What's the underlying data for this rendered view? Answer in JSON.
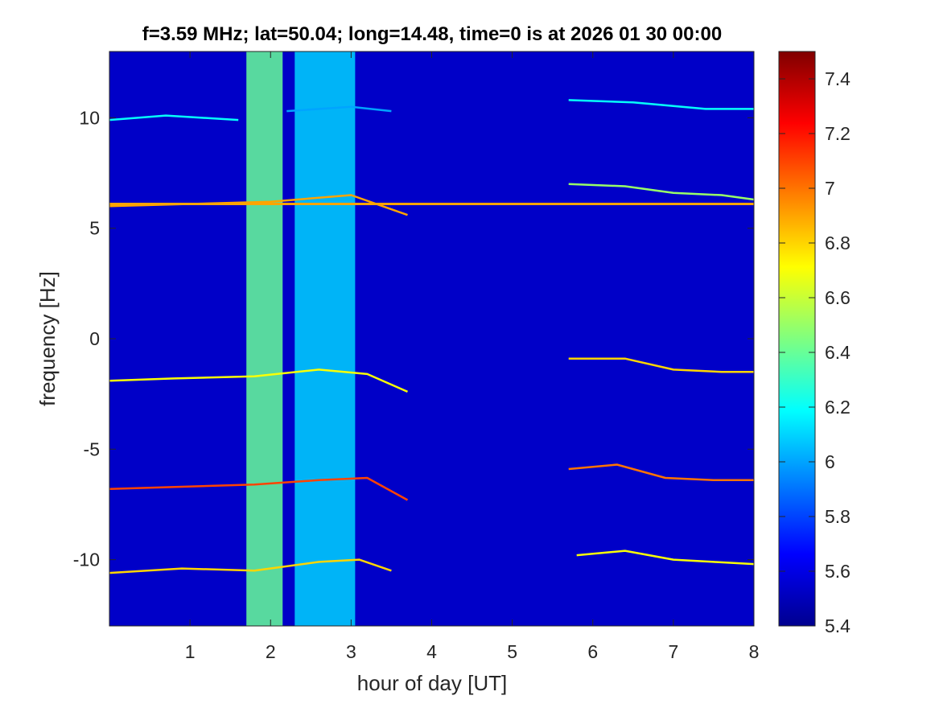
{
  "chart_data": {
    "type": "heatmap",
    "title": "f=3.59 MHz;  lat=50.04; long=14.48, time=0 is at 2026 01 30 00:00",
    "xlabel": "hour of day [UT]",
    "ylabel": "frequency [Hz]",
    "xlim": [
      0,
      8
    ],
    "ylim": [
      -13,
      13
    ],
    "x_ticks": [
      1,
      2,
      3,
      4,
      5,
      6,
      7,
      8
    ],
    "x_tick_labels": [
      "1",
      "2",
      "3",
      "4",
      "5",
      "6",
      "7",
      "8"
    ],
    "y_ticks": [
      10,
      5,
      0,
      -5,
      -10
    ],
    "y_tick_labels": [
      "10",
      "5",
      "0",
      "-5",
      "-10"
    ],
    "colorbar": {
      "colormap": "jet",
      "range": [
        5.4,
        7.5
      ],
      "ticks": [
        7.4,
        7.2,
        7.0,
        6.8,
        6.6,
        6.4,
        6.2,
        6.0,
        5.8,
        5.6,
        5.4
      ],
      "tick_labels": [
        "7.4",
        "7.2",
        "7",
        "6.8",
        "6.6",
        "6.4",
        "6.2",
        "6",
        "5.8",
        "5.6",
        "5.4"
      ]
    },
    "background_level": 5.55,
    "broadband_bands": [
      {
        "x_start": 1.7,
        "x_end": 2.15,
        "level": 6.4
      },
      {
        "x_start": 2.3,
        "x_end": 3.05,
        "level": 6.1
      }
    ],
    "tones": [
      {
        "x_start": 0.0,
        "x_end": 8.0,
        "freq": 6.1,
        "level": 6.9
      }
    ],
    "traces": [
      {
        "points": [
          [
            0.0,
            9.9
          ],
          [
            0.7,
            10.1
          ],
          [
            1.6,
            9.9
          ]
        ],
        "level": 6.2
      },
      {
        "points": [
          [
            2.2,
            10.3
          ],
          [
            3.0,
            10.5
          ],
          [
            3.5,
            10.3
          ]
        ],
        "level": 6.0
      },
      {
        "points": [
          [
            5.7,
            10.8
          ],
          [
            6.5,
            10.7
          ],
          [
            7.4,
            10.4
          ],
          [
            8.0,
            10.4
          ]
        ],
        "level": 6.2
      },
      {
        "points": [
          [
            0.0,
            6.0
          ],
          [
            1.0,
            6.1
          ],
          [
            2.0,
            6.2
          ],
          [
            3.0,
            6.5
          ],
          [
            3.7,
            5.6
          ]
        ],
        "level": 6.9
      },
      {
        "points": [
          [
            5.7,
            7.0
          ],
          [
            6.4,
            6.9
          ],
          [
            7.0,
            6.6
          ],
          [
            7.6,
            6.5
          ],
          [
            8.0,
            6.3
          ]
        ],
        "level": 6.5
      },
      {
        "points": [
          [
            0.0,
            -1.9
          ],
          [
            0.8,
            -1.8
          ],
          [
            1.8,
            -1.7
          ],
          [
            2.6,
            -1.4
          ],
          [
            3.2,
            -1.6
          ],
          [
            3.7,
            -2.4
          ]
        ],
        "level": 6.7
      },
      {
        "points": [
          [
            5.7,
            -0.9
          ],
          [
            6.4,
            -0.9
          ],
          [
            7.0,
            -1.4
          ],
          [
            7.6,
            -1.5
          ],
          [
            8.0,
            -1.5
          ]
        ],
        "level": 6.8
      },
      {
        "points": [
          [
            0.0,
            -6.8
          ],
          [
            0.9,
            -6.7
          ],
          [
            1.8,
            -6.6
          ],
          [
            2.6,
            -6.4
          ],
          [
            3.2,
            -6.3
          ],
          [
            3.7,
            -7.3
          ]
        ],
        "level": 7.1
      },
      {
        "points": [
          [
            5.7,
            -5.9
          ],
          [
            6.3,
            -5.7
          ],
          [
            6.9,
            -6.3
          ],
          [
            7.5,
            -6.4
          ],
          [
            8.0,
            -6.4
          ]
        ],
        "level": 7.0
      },
      {
        "points": [
          [
            0.0,
            -10.6
          ],
          [
            0.9,
            -10.4
          ],
          [
            1.8,
            -10.5
          ],
          [
            2.6,
            -10.1
          ],
          [
            3.1,
            -10.0
          ],
          [
            3.5,
            -10.5
          ]
        ],
        "level": 6.8
      },
      {
        "points": [
          [
            5.8,
            -9.8
          ],
          [
            6.4,
            -9.6
          ],
          [
            7.0,
            -10.0
          ],
          [
            7.5,
            -10.1
          ],
          [
            8.0,
            -10.2
          ]
        ],
        "level": 6.7
      }
    ]
  }
}
